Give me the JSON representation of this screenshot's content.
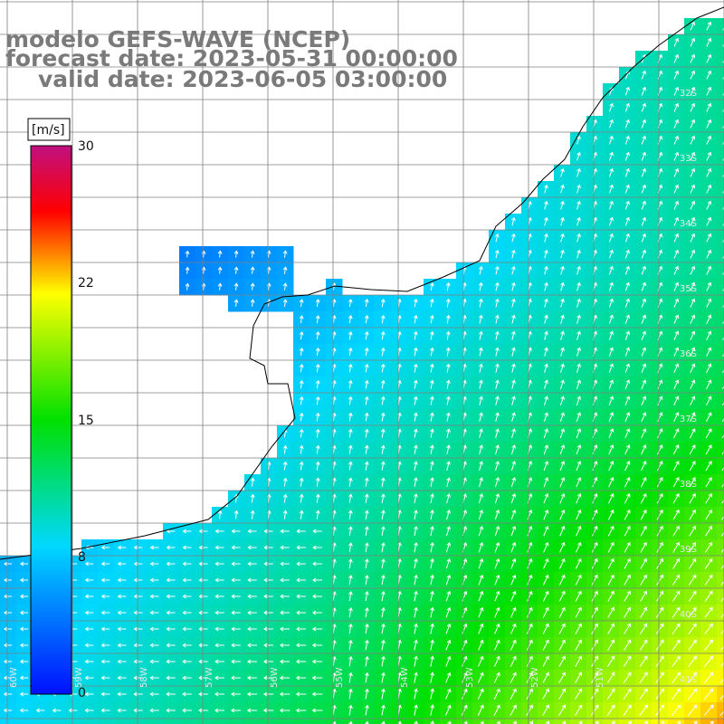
{
  "title": {
    "model": "modelo GEFS-WAVE (NCEP)",
    "forecast": "forecast date: 2023-05-31 00:00:00",
    "valid": "valid date: 2023-06-05 03:00:00"
  },
  "colorbar": {
    "unit": "[m/s]",
    "ticks": [
      "0",
      "8",
      "15",
      "22",
      "30"
    ],
    "range": [
      0,
      30
    ],
    "colors": [
      "#0010ff",
      "#00d8ff",
      "#00e000",
      "#ffff00",
      "#ff0000",
      "#c01080"
    ]
  },
  "lat_labels": [
    "32S",
    "33S",
    "34S",
    "35S",
    "36S",
    "37S",
    "38S",
    "39S",
    "40S",
    "41S"
  ],
  "lon_labels": [
    "60W",
    "59W",
    "58W",
    "57W",
    "56W",
    "55W",
    "54W",
    "53W",
    "52W",
    "51W"
  ],
  "colors": {
    "land": "#ffffff",
    "grid": "#808080",
    "coast": "#000000",
    "arrow": "#ffffff",
    "title": "#7a7a7a"
  }
}
